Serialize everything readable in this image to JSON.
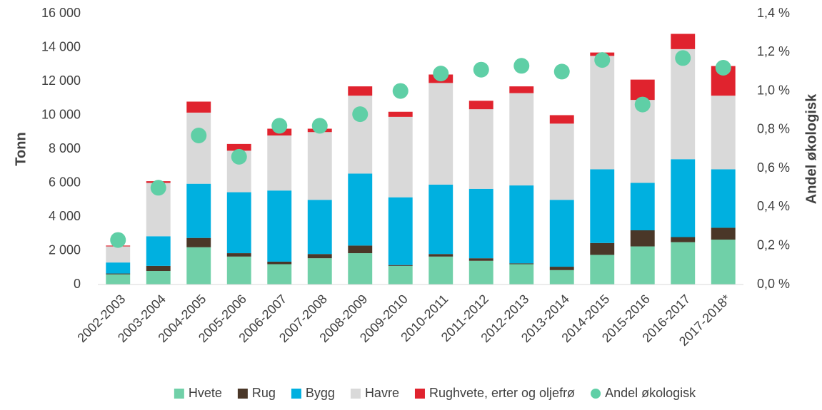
{
  "chart_data": {
    "type": "bar",
    "stacked": true,
    "ylabel": "Tonn",
    "y2label": "Andel økologisk",
    "categories": [
      "2002-2003",
      "2003-2004",
      "2004-2005",
      "2005-2006",
      "2006-2007",
      "2007-2008",
      "2008-2009",
      "2009-2010",
      "2010-2011",
      "2011-2012",
      "2012-2013",
      "2013-2014",
      "2014-2015",
      "2015-2016",
      "2016-2017",
      "2017-2018*"
    ],
    "ylim": [
      0,
      16000
    ],
    "yticks": [
      0,
      {
        "value": 2000,
        "label": "2 000"
      },
      {
        "value": 4000,
        "label": "4 000"
      },
      {
        "value": 6000,
        "label": "6 000"
      },
      {
        "value": 8000,
        "label": "8 000"
      },
      {
        "value": 10000,
        "label": "10 000"
      },
      {
        "value": 12000,
        "label": "12 000"
      },
      {
        "value": 14000,
        "label": "14 000"
      },
      {
        "value": 16000,
        "label": "16 000"
      }
    ],
    "y2lim": [
      0,
      1.4
    ],
    "y2ticks": [
      {
        "value": 0,
        "label": "0,0 %"
      },
      {
        "value": 0.2,
        "label": "0,2 %"
      },
      {
        "value": 0.4,
        "label": "0,4 %"
      },
      {
        "value": 0.6,
        "label": "0,6 %"
      },
      {
        "value": 0.8,
        "label": "0,8 %"
      },
      {
        "value": 1.0,
        "label": "1,0 %"
      },
      {
        "value": 1.2,
        "label": "1,2 %"
      },
      {
        "value": 1.4,
        "label": "1,4 %"
      }
    ],
    "grid": false,
    "legend": "bottom",
    "series": [
      {
        "name": "Hvete",
        "color": "#70d0a8",
        "values": [
          600,
          800,
          2200,
          1650,
          1200,
          1550,
          1850,
          1100,
          1650,
          1400,
          1200,
          850,
          1750,
          2250,
          2500,
          2650
        ]
      },
      {
        "name": "Rug",
        "color": "#4a3728",
        "values": [
          50,
          300,
          550,
          200,
          150,
          250,
          450,
          50,
          150,
          150,
          50,
          200,
          700,
          950,
          300,
          700
        ]
      },
      {
        "name": "Bygg",
        "color": "#00b0e0",
        "values": [
          650,
          1750,
          3200,
          3600,
          4200,
          3200,
          4250,
          4000,
          4100,
          4100,
          4600,
          3950,
          4350,
          2800,
          4600,
          3450
        ]
      },
      {
        "name": "Havre",
        "color": "#d9d9d9",
        "values": [
          950,
          3150,
          4200,
          2450,
          3250,
          4000,
          4600,
          4750,
          6000,
          4700,
          5450,
          4500,
          6700,
          4900,
          6500,
          4350
        ]
      },
      {
        "name": "Rughvete, erter og oljefrø",
        "color": "#e0232e",
        "values": [
          50,
          100,
          650,
          400,
          400,
          200,
          550,
          300,
          500,
          500,
          400,
          500,
          200,
          1200,
          900,
          1750
        ]
      },
      {
        "name": "Andel økologisk",
        "color": "#5fcfa6",
        "type": "scatter",
        "axis": "y2",
        "values": [
          0.23,
          0.5,
          0.77,
          0.66,
          0.82,
          0.82,
          0.88,
          1.0,
          1.09,
          1.11,
          1.13,
          1.1,
          1.16,
          0.93,
          1.17,
          1.12
        ]
      }
    ]
  }
}
